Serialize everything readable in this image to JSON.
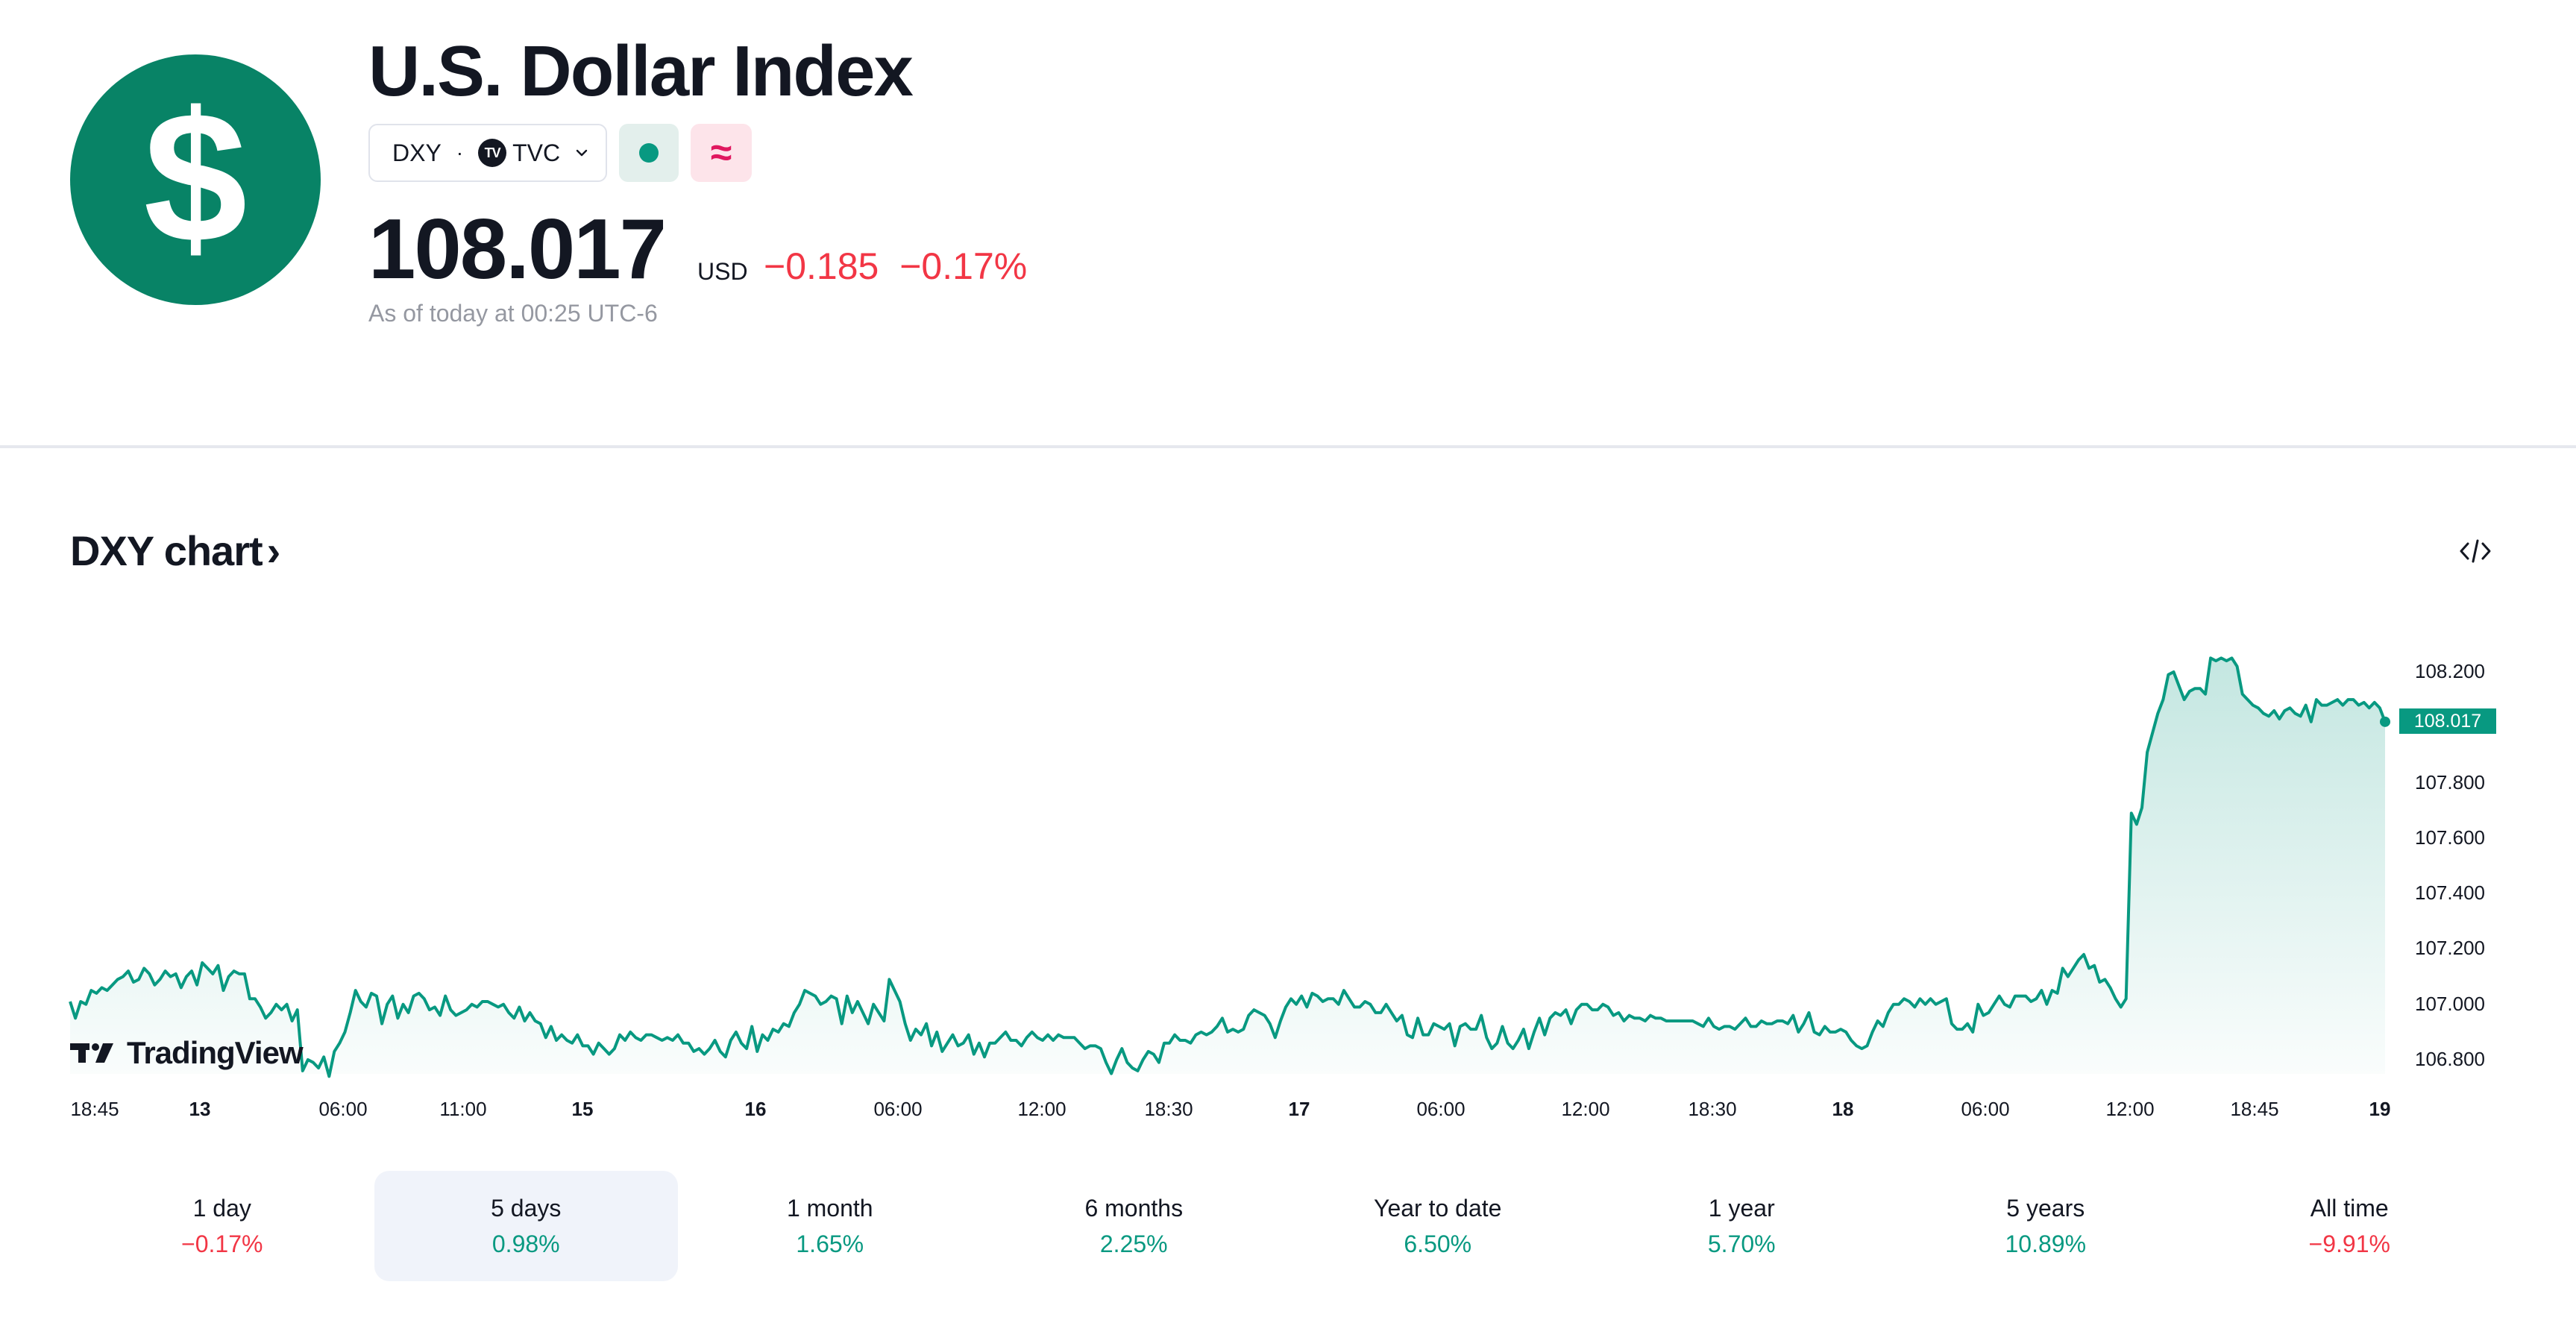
{
  "header": {
    "logo_glyph": "$",
    "title": "U.S. Dollar Index",
    "symbol": "DXY",
    "separator": "·",
    "exchange_badge": "TV",
    "exchange": "TVC",
    "delay_symbol": "≈",
    "price": "108.017",
    "currency": "USD",
    "change": "−0.185",
    "change_pct": "−0.17%",
    "as_of": "As of today at 00:25 UTC-6"
  },
  "chart_section": {
    "title": "DXY chart",
    "title_arrow": "›"
  },
  "chart_data": {
    "type": "area",
    "series": [
      {
        "values": [
          107.01,
          106.95,
          107.01,
          107.0,
          107.05,
          107.04,
          107.06,
          107.05,
          107.07,
          107.09,
          107.1,
          107.12,
          107.08,
          107.09,
          107.13,
          107.11,
          107.07,
          107.09,
          107.12,
          107.1,
          107.11,
          107.06,
          107.1,
          107.12,
          107.07,
          107.15,
          107.13,
          107.11,
          107.14,
          107.05,
          107.1,
          107.12,
          107.11,
          107.11,
          107.02,
          107.02,
          106.99,
          106.95,
          106.97,
          107.0,
          106.98,
          107.0,
          106.94,
          106.98,
          106.76,
          106.8,
          106.79,
          106.77,
          106.81,
          106.74,
          106.83,
          106.86,
          106.9,
          106.97,
          107.05,
          107.01,
          106.99,
          107.04,
          107.03,
          106.93,
          107.0,
          107.03,
          106.95,
          107.0,
          106.97,
          107.03,
          107.04,
          107.02,
          106.98,
          106.99,
          106.96,
          107.03,
          106.98,
          106.96,
          106.97,
          106.98,
          107.0,
          106.99,
          107.01,
          107.01,
          107.0,
          106.99,
          107.0,
          106.97,
          106.95,
          106.99,
          106.94,
          106.97,
          106.94,
          106.93,
          106.88,
          106.92,
          106.87,
          106.89,
          106.87,
          106.86,
          106.89,
          106.85,
          106.85,
          106.82,
          106.86,
          106.84,
          106.82,
          106.84,
          106.89,
          106.87,
          106.9,
          106.88,
          106.87,
          106.89,
          106.89,
          106.88,
          106.87,
          106.88,
          106.87,
          106.89,
          106.86,
          106.86,
          106.83,
          106.84,
          106.82,
          106.84,
          106.87,
          106.83,
          106.81,
          106.87,
          106.9,
          106.86,
          106.84,
          106.92,
          106.83,
          106.89,
          106.87,
          106.91,
          106.9,
          106.93,
          106.92,
          106.97,
          107.0,
          107.05,
          107.04,
          107.03,
          107.0,
          107.01,
          107.03,
          107.02,
          106.93,
          107.03,
          106.97,
          107.01,
          106.97,
          106.93,
          107.0,
          106.97,
          106.94,
          107.09,
          107.05,
          107.01,
          106.93,
          106.87,
          106.91,
          106.89,
          106.93,
          106.85,
          106.9,
          106.83,
          106.86,
          106.89,
          106.85,
          106.86,
          106.89,
          106.82,
          106.86,
          106.81,
          106.86,
          106.86,
          106.88,
          106.9,
          106.87,
          106.87,
          106.85,
          106.88,
          106.9,
          106.88,
          106.87,
          106.89,
          106.87,
          106.89,
          106.88,
          106.88,
          106.88,
          106.86,
          106.84,
          106.85,
          106.85,
          106.84,
          106.79,
          106.75,
          106.8,
          106.84,
          106.79,
          106.77,
          106.76,
          106.8,
          106.83,
          106.82,
          106.79,
          106.86,
          106.86,
          106.89,
          106.87,
          106.87,
          106.86,
          106.89,
          106.9,
          106.89,
          106.9,
          106.92,
          106.95,
          106.9,
          106.91,
          106.9,
          106.91,
          106.96,
          106.98,
          106.97,
          106.96,
          106.93,
          106.88,
          106.94,
          106.99,
          107.02,
          107.0,
          107.03,
          106.99,
          107.04,
          107.03,
          107.01,
          107.02,
          107.02,
          107.0,
          107.05,
          107.02,
          106.99,
          106.99,
          107.01,
          107.0,
          106.97,
          106.97,
          107.0,
          106.97,
          106.94,
          106.96,
          106.89,
          106.88,
          106.95,
          106.89,
          106.89,
          106.93,
          106.92,
          106.91,
          106.93,
          106.85,
          106.92,
          106.93,
          106.91,
          106.91,
          106.96,
          106.88,
          106.84,
          106.86,
          106.92,
          106.86,
          106.84,
          106.87,
          106.91,
          106.84,
          106.9,
          106.95,
          106.89,
          106.95,
          106.97,
          106.96,
          106.98,
          106.93,
          106.98,
          107.0,
          107.0,
          106.98,
          106.98,
          107.0,
          106.99,
          106.96,
          106.97,
          106.94,
          106.96,
          106.95,
          106.95,
          106.94,
          106.96,
          106.95,
          106.95,
          106.94,
          106.94,
          106.94,
          106.94,
          106.94,
          106.94,
          106.93,
          106.92,
          106.95,
          106.92,
          106.91,
          106.92,
          106.92,
          106.91,
          106.93,
          106.95,
          106.92,
          106.92,
          106.94,
          106.93,
          106.93,
          106.94,
          106.94,
          106.93,
          106.96,
          106.9,
          106.93,
          106.97,
          106.9,
          106.89,
          106.92,
          106.9,
          106.9,
          106.91,
          106.9,
          106.87,
          106.85,
          106.84,
          106.85,
          106.9,
          106.94,
          106.92,
          106.97,
          107.0,
          107.0,
          107.02,
          107.01,
          106.99,
          107.02,
          107.0,
          107.02,
          107.0,
          107.01,
          107.02,
          106.93,
          106.91,
          106.91,
          106.93,
          106.9,
          107.0,
          106.96,
          106.97,
          107.0,
          107.03,
          107.0,
          106.99,
          107.03,
          107.03,
          107.03,
          107.01,
          107.02,
          107.05,
          107.0,
          107.05,
          107.04,
          107.13,
          107.1,
          107.13,
          107.16,
          107.18,
          107.13,
          107.14,
          107.08,
          107.09,
          107.06,
          107.02,
          106.99,
          107.02,
          107.69,
          107.65,
          107.71,
          107.91,
          107.98,
          108.05,
          108.1,
          108.19,
          108.2,
          108.15,
          108.1,
          108.13,
          108.14,
          108.14,
          108.12,
          108.25,
          108.24,
          108.25,
          108.24,
          108.25,
          108.22,
          108.12,
          108.1,
          108.08,
          108.07,
          108.05,
          108.04,
          108.06,
          108.03,
          108.06,
          108.07,
          108.05,
          108.04,
          108.08,
          108.02,
          108.1,
          108.08,
          108.08,
          108.09,
          108.1,
          108.08,
          108.1,
          108.1,
          108.08,
          108.09,
          108.07,
          108.09,
          108.07,
          108.02
        ]
      }
    ],
    "ylim": [
      106.74,
      108.27
    ],
    "yticks": [
      "108.200",
      "107.800",
      "107.600",
      "107.400",
      "107.200",
      "107.000",
      "106.800"
    ],
    "xticks": [
      {
        "label": "18:45",
        "bold": false
      },
      {
        "label": "13",
        "bold": true
      },
      {
        "label": "06:00",
        "bold": false
      },
      {
        "label": "11:00",
        "bold": false
      },
      {
        "label": "15",
        "bold": true
      },
      {
        "label": "16",
        "bold": true
      },
      {
        "label": "06:00",
        "bold": false
      },
      {
        "label": "12:00",
        "bold": false
      },
      {
        "label": "18:30",
        "bold": false
      },
      {
        "label": "17",
        "bold": true
      },
      {
        "label": "06:00",
        "bold": false
      },
      {
        "label": "12:00",
        "bold": false
      },
      {
        "label": "18:30",
        "bold": false
      },
      {
        "label": "18",
        "bold": true
      },
      {
        "label": "06:00",
        "bold": false
      },
      {
        "label": "12:00",
        "bold": false
      },
      {
        "label": "18:45",
        "bold": false
      },
      {
        "label": "19",
        "bold": true
      }
    ],
    "last_value_label": "108.017",
    "line_color": "#089981",
    "grid": false
  },
  "branding": {
    "text": "TradingView"
  },
  "periods": [
    {
      "label": "1 day",
      "value": "−0.17%",
      "sign": "neg",
      "active": false
    },
    {
      "label": "5 days",
      "value": "0.98%",
      "sign": "pos",
      "active": true
    },
    {
      "label": "1 month",
      "value": "1.65%",
      "sign": "pos",
      "active": false
    },
    {
      "label": "6 months",
      "value": "2.25%",
      "sign": "pos",
      "active": false
    },
    {
      "label": "Year to date",
      "value": "6.50%",
      "sign": "pos",
      "active": false
    },
    {
      "label": "1 year",
      "value": "5.70%",
      "sign": "pos",
      "active": false
    },
    {
      "label": "5 years",
      "value": "10.89%",
      "sign": "pos",
      "active": false
    },
    {
      "label": "All time",
      "value": "−9.91%",
      "sign": "neg",
      "active": false
    }
  ],
  "colors": {
    "brand_green": "#088366",
    "up": "#089981",
    "down": "#f23645",
    "active_period_bg": "#f0f3fa"
  }
}
